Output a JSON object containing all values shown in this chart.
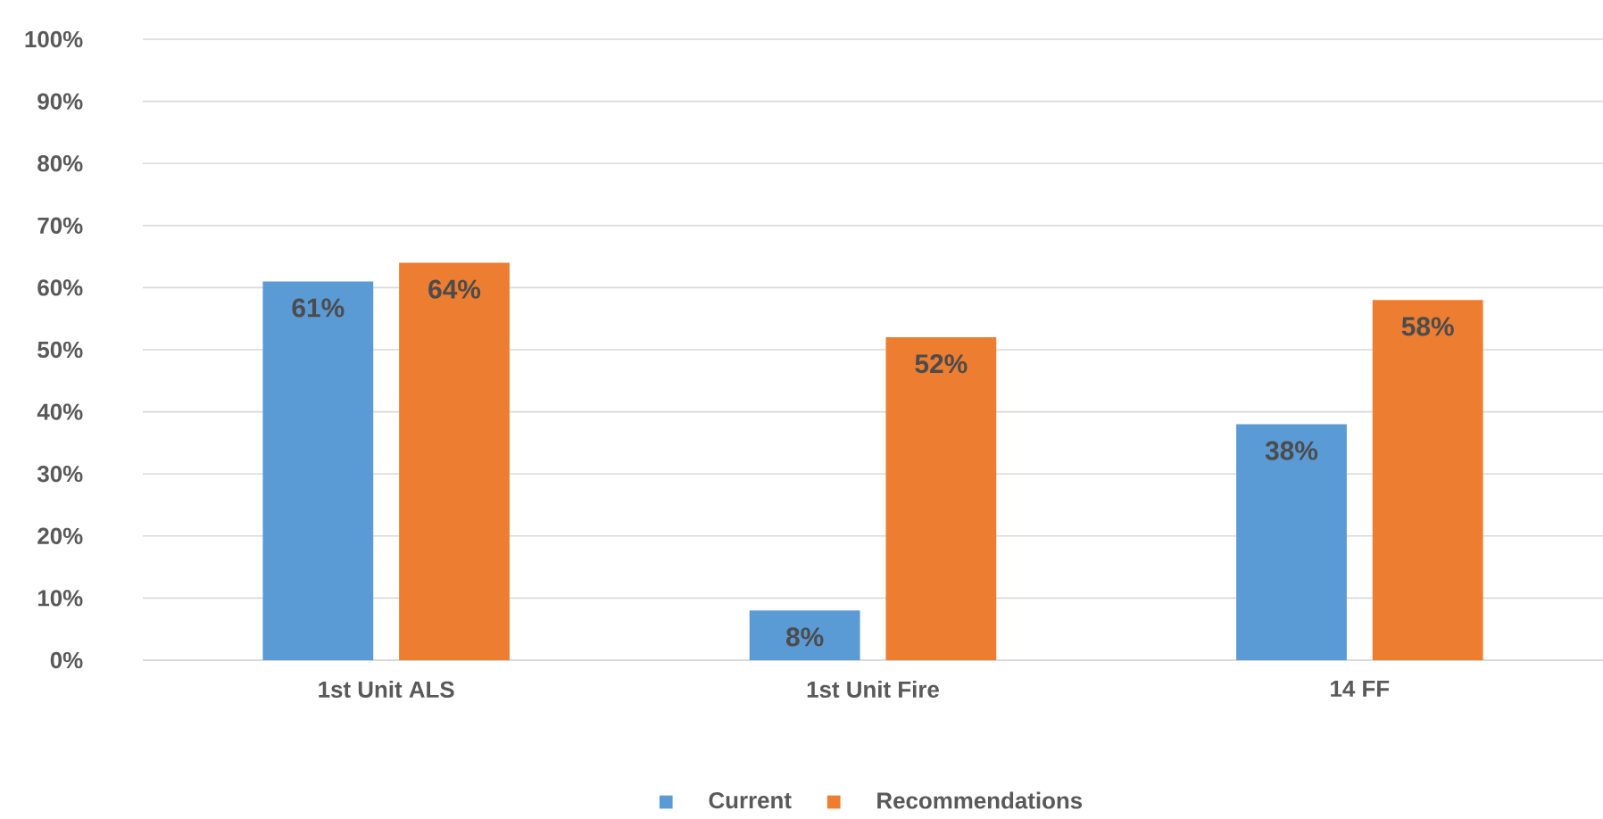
{
  "chart_data": {
    "type": "bar",
    "categories": [
      "1st Unit ALS",
      "1st Unit Fire",
      "14 FF"
    ],
    "series": [
      {
        "name": "Current",
        "color": "#5b9bd5",
        "values": [
          61,
          8,
          38
        ],
        "value_labels": [
          "61%",
          "8%",
          "38%"
        ]
      },
      {
        "name": "Recommendations",
        "color": "#ed7d31",
        "values": [
          64,
          52,
          58
        ],
        "value_labels": [
          "64%",
          "52%",
          "58%"
        ]
      }
    ],
    "ylim": [
      0,
      100
    ],
    "yticks": [
      {
        "value": 0,
        "label": "0%"
      },
      {
        "value": 10,
        "label": "10%"
      },
      {
        "value": 20,
        "label": "20%"
      },
      {
        "value": 30,
        "label": "30%"
      },
      {
        "value": 40,
        "label": "40%"
      },
      {
        "value": 50,
        "label": "50%"
      },
      {
        "value": 60,
        "label": "60%"
      },
      {
        "value": 70,
        "label": "70%"
      },
      {
        "value": 80,
        "label": "80%"
      },
      {
        "value": 90,
        "label": "90%"
      },
      {
        "value": 100,
        "label": "100%"
      }
    ],
    "grid": "y",
    "legend": "bottom"
  }
}
